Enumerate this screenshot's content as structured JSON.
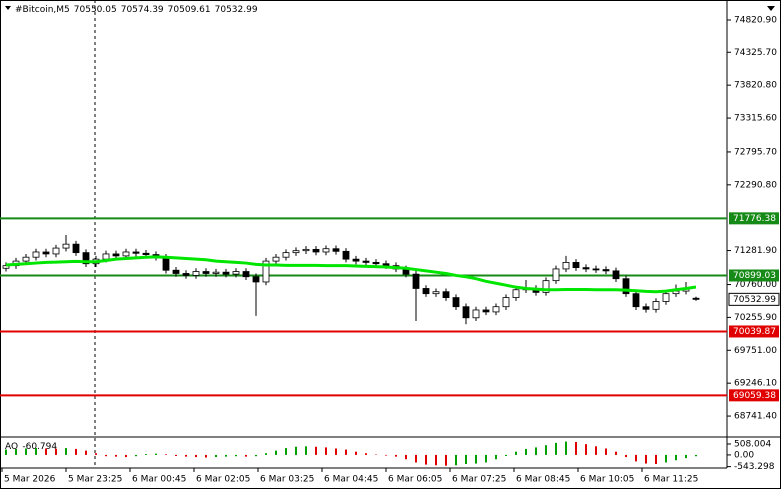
{
  "chart_data": {
    "type": "candlestick",
    "symbol": "#Bitcoin,M5",
    "x_labels": [
      "5 Mar 2026",
      "5 Mar 23:25",
      "6 Mar 00:45",
      "6 Mar 02:05",
      "6 Mar 03:25",
      "6 Mar 04:45",
      "6 Mar 06:05",
      "6 Mar 07:25",
      "6 Mar 08:45",
      "6 Mar 10:05",
      "6 Mar 11:25"
    ],
    "open": [
      71010,
      71050,
      71120,
      71180,
      71260,
      71230,
      71320,
      71380,
      71250,
      71080,
      71150,
      71230,
      71200,
      71260,
      71240,
      71220,
      71180,
      70980,
      70930,
      70900,
      70960,
      70930,
      70950,
      70920,
      70960,
      70880,
      70800,
      71120,
      71180,
      71250,
      71280,
      71300,
      71260,
      71310,
      71270,
      71150,
      71120,
      71100,
      71080,
      71050,
      71000,
      70920,
      70700,
      70620,
      70650,
      70560,
      70420,
      70250,
      70370,
      70340,
      70420,
      70560,
      70680,
      70700,
      70640,
      70820,
      71000,
      71100,
      71020,
      71000,
      70990,
      70970,
      70850,
      70620,
      70420,
      70380,
      70500,
      70620,
      70660,
      70550.05
    ],
    "high": [
      71100,
      71170,
      71230,
      71310,
      71310,
      71370,
      71520,
      71430,
      71300,
      71200,
      71280,
      71280,
      71310,
      71310,
      71290,
      71270,
      71230,
      71030,
      70980,
      71010,
      71010,
      71000,
      71000,
      71010,
      71010,
      70930,
      71170,
      71230,
      71300,
      71330,
      71350,
      71350,
      71360,
      71360,
      71320,
      71200,
      71170,
      71150,
      71130,
      71100,
      71050,
      70970,
      70750,
      70700,
      70700,
      70610,
      70470,
      70420,
      70420,
      70470,
      70610,
      70730,
      70830,
      70750,
      70870,
      71050,
      71200,
      71150,
      71070,
      71050,
      71040,
      71020,
      70900,
      70670,
      70470,
      70550,
      70670,
      70760,
      70800,
      70574.39
    ],
    "low": [
      70960,
      71000,
      71070,
      71130,
      71180,
      71180,
      71270,
      71200,
      71030,
      71030,
      71100,
      71150,
      71150,
      71190,
      71170,
      71130,
      70930,
      70880,
      70850,
      70850,
      70880,
      70880,
      70870,
      70870,
      70830,
      70280,
      70750,
      71070,
      71130,
      71200,
      71230,
      71210,
      71210,
      71220,
      71100,
      71070,
      71050,
      71030,
      71000,
      70950,
      70870,
      70200,
      70570,
      70570,
      70510,
      70370,
      70150,
      70200,
      70290,
      70290,
      70370,
      70510,
      70630,
      70590,
      70590,
      70770,
      70950,
      70970,
      70950,
      70940,
      70920,
      70800,
      70570,
      70370,
      70330,
      70330,
      70450,
      70570,
      70610,
      70509.61
    ],
    "close": [
      71050,
      71120,
      71180,
      71260,
      71230,
      71320,
      71380,
      71250,
      71080,
      71150,
      71230,
      71200,
      71260,
      71240,
      71220,
      71180,
      70980,
      70930,
      70900,
      70960,
      70930,
      70950,
      70920,
      70960,
      70880,
      70800,
      71120,
      71180,
      71250,
      71280,
      71300,
      71260,
      71310,
      71270,
      71150,
      71120,
      71100,
      71080,
      71050,
      71000,
      70920,
      70700,
      70620,
      70650,
      70560,
      70420,
      70250,
      70370,
      70340,
      70420,
      70560,
      70680,
      70700,
      70640,
      70820,
      71000,
      71100,
      71020,
      71000,
      70990,
      70970,
      70850,
      70620,
      70420,
      70380,
      70500,
      70620,
      70660,
      70700,
      70532.99
    ],
    "ma": {
      "color": "#00e600",
      "values": [
        71060,
        71070,
        71080,
        71090,
        71100,
        71105,
        71110,
        71115,
        71110,
        71110,
        71130,
        71150,
        71160,
        71170,
        71180,
        71185,
        71180,
        71170,
        71160,
        71150,
        71140,
        71120,
        71110,
        71100,
        71090,
        71070,
        71060,
        71060,
        71055,
        71055,
        71055,
        71055,
        71050,
        71050,
        71050,
        71045,
        71040,
        71035,
        71030,
        71020,
        71010,
        70990,
        70970,
        70950,
        70930,
        70900,
        70880,
        70850,
        70810,
        70780,
        70750,
        70720,
        70700,
        70690,
        70680,
        70680,
        70685,
        70685,
        70685,
        70680,
        70680,
        70680,
        70675,
        70665,
        70655,
        70650,
        70660,
        70680,
        70700,
        70722
      ]
    },
    "ylim": [
      68420,
      75128
    ],
    "yticks": [
      {
        "value": 74820.9,
        "label": "74820.90"
      },
      {
        "value": 74325.7,
        "label": "74325.70"
      },
      {
        "value": 73820.8,
        "label": "73820.80"
      },
      {
        "value": 73315.6,
        "label": "73315.60"
      },
      {
        "value": 72795.7,
        "label": "72795.70"
      },
      {
        "value": 72290.8,
        "label": "72290.80"
      },
      {
        "value": 71281.9,
        "label": "71281.90"
      },
      {
        "value": 70760,
        "label": "70760.00"
      },
      {
        "value": 70255.9,
        "label": "70255.90"
      },
      {
        "value": 69751,
        "label": "69751.00"
      },
      {
        "value": 69246.1,
        "label": "69246.10"
      },
      {
        "value": 68741.4,
        "label": "68741.40"
      }
    ],
    "levels": [
      {
        "value": 71776.38,
        "label": "71776.38",
        "color": "#168a16"
      },
      {
        "value": 70899.03,
        "label": "70899.03",
        "color": "#168a16"
      },
      {
        "value": 70039.87,
        "label": "70039.87",
        "color": "#e00000"
      },
      {
        "value": 69059.38,
        "label": "69059.38",
        "color": "#e00000"
      }
    ],
    "ao": {
      "name": "AO",
      "up_color": "#00a000",
      "down_color": "#e00000",
      "ylim": [
        -700,
        600
      ],
      "yticks": [
        {
          "value": 508.004,
          "label": "508.004"
        },
        {
          "value": 0,
          "label": "0.00"
        },
        {
          "value": -543.298,
          "label": "-543.298"
        }
      ],
      "values": [
        250,
        280,
        300,
        320,
        300,
        290,
        320,
        280,
        200,
        80,
        -60,
        -80,
        -100,
        -60,
        40,
        60,
        30,
        -50,
        -80,
        -100,
        -120,
        -100,
        -80,
        -60,
        -80,
        -60,
        80,
        200,
        320,
        380,
        400,
        380,
        350,
        300,
        250,
        150,
        80,
        20,
        -30,
        -80,
        -200,
        -350,
        -450,
        -480,
        -500,
        -480,
        -420,
        -400,
        -350,
        -200,
        -50,
        150,
        280,
        350,
        450,
        560,
        620,
        600,
        500,
        400,
        300,
        150,
        -100,
        -300,
        -400,
        -420,
        -350,
        -250,
        -150,
        -60.794
      ]
    }
  }
}
